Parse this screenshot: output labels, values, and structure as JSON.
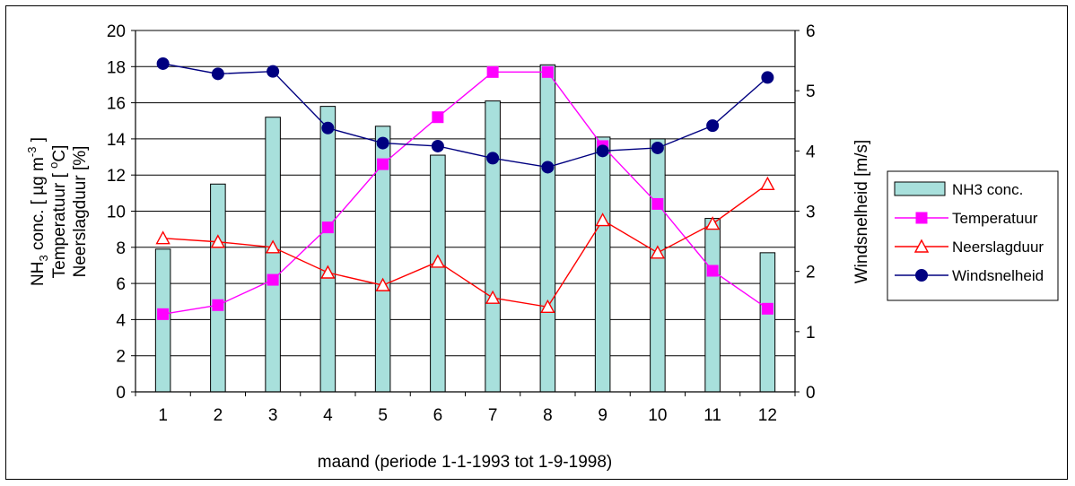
{
  "chart_data": {
    "type": "bar",
    "categories": [
      "1",
      "2",
      "3",
      "4",
      "5",
      "6",
      "7",
      "8",
      "9",
      "10",
      "11",
      "12"
    ],
    "xlabel": "maand (periode 1-1-1993 tot 1-9-1998)",
    "ylabel_left": {
      "line1_prefix": "NH",
      "line1_sub": "3",
      "line1_mid": " conc. [ µg m",
      "line1_sup": "-3",
      "line1_suffix": " ]",
      "line2_prefix": "Temperatuur [ ",
      "line2_sup": "o",
      "line2_suffix": "C]",
      "line3": "Neerslagduur [%]"
    },
    "ylabel_right": "Windsnelheid [m/s]",
    "ylim_left": [
      0,
      20
    ],
    "ylim_right": [
      0,
      6
    ],
    "left_ticks": [
      "0",
      "2",
      "4",
      "6",
      "8",
      "10",
      "12",
      "14",
      "16",
      "18",
      "20"
    ],
    "right_ticks": [
      "0",
      "1",
      "2",
      "3",
      "4",
      "5",
      "6"
    ],
    "grid": true,
    "legend_position": "right",
    "series": [
      {
        "name": "NH3 conc.",
        "type": "bar",
        "axis": "left",
        "color": "#A8E0DC",
        "values": [
          7.9,
          11.5,
          15.2,
          15.8,
          14.7,
          13.1,
          16.1,
          18.1,
          14.1,
          14.0,
          9.6,
          7.7
        ]
      },
      {
        "name": "Temperatuur",
        "type": "line",
        "axis": "left",
        "color": "#FF00FF",
        "marker": "square",
        "values": [
          4.3,
          4.8,
          6.2,
          9.1,
          12.6,
          15.2,
          17.7,
          17.7,
          13.6,
          10.4,
          6.7,
          4.6
        ]
      },
      {
        "name": "Neerslagduur",
        "type": "line",
        "axis": "left",
        "color": "#FF0000",
        "marker": "triangle-open",
        "values": [
          8.5,
          8.3,
          8.0,
          6.6,
          5.9,
          7.2,
          5.2,
          4.7,
          9.5,
          7.7,
          9.3,
          11.5
        ]
      },
      {
        "name": "Windsnelheid",
        "type": "line",
        "axis": "right",
        "color": "#000080",
        "marker": "circle",
        "values": [
          5.45,
          5.28,
          5.32,
          4.38,
          4.13,
          4.08,
          3.88,
          3.73,
          4.0,
          4.05,
          4.42,
          5.22
        ]
      }
    ]
  }
}
